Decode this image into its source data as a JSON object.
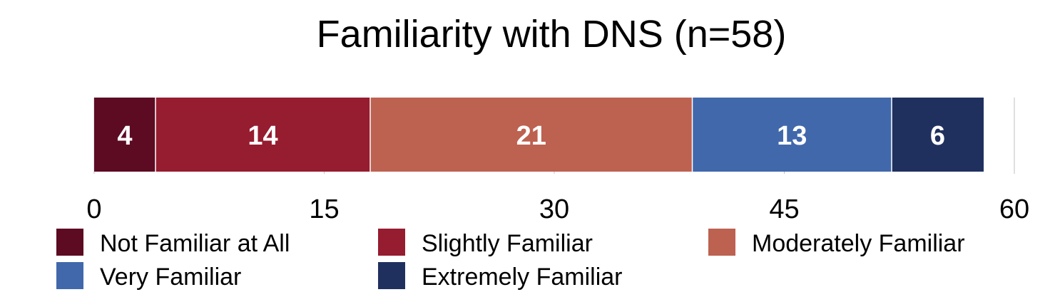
{
  "chart_data": {
    "type": "bar",
    "orientation": "horizontal-stacked",
    "title": "Familiarity with DNS (n=58)",
    "xlim": [
      0,
      60
    ],
    "xticks": [
      0,
      15,
      30,
      45,
      60
    ],
    "grid": true,
    "legend_position": "bottom",
    "series": [
      {
        "name": "Not Familiar at All",
        "value": 4,
        "color": "#5c0b23"
      },
      {
        "name": "Slightly Familiar",
        "value": 14,
        "color": "#961c30"
      },
      {
        "name": "Moderately Familiar",
        "value": 21,
        "color": "#bd6150"
      },
      {
        "name": "Very Familiar",
        "value": 13,
        "color": "#4168ab"
      },
      {
        "name": "Extremely Familiar",
        "value": 6,
        "color": "#20305e"
      }
    ]
  }
}
